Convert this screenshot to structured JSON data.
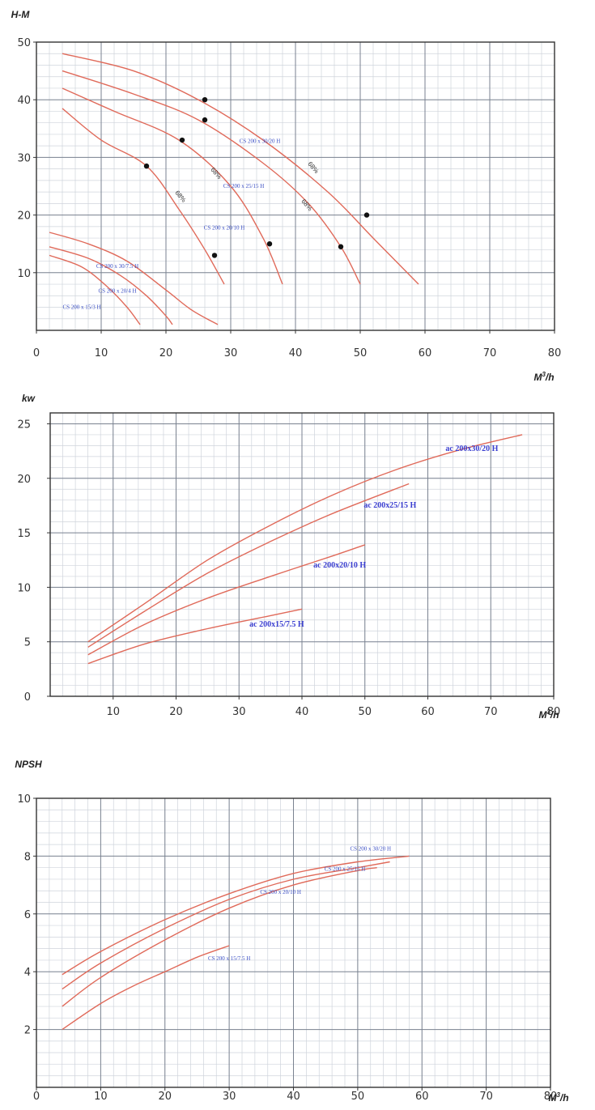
{
  "colors": {
    "grid_minor": "#cfd4dc",
    "grid_major": "#7a8290",
    "frame": "#333333",
    "curve": "#e06a5a",
    "label": "#3b4fc4",
    "point": "#111111"
  },
  "chart_data": [
    {
      "type": "line",
      "ylabel": "H-M",
      "xlabel_main": "M",
      "xlabel_sup": "3",
      "xlabel_tail": "/h",
      "xlim": [
        0,
        80
      ],
      "ylim": [
        0,
        50
      ],
      "xticks": [
        "0",
        "10",
        "20",
        "30",
        "40",
        "50",
        "60",
        "70",
        "80"
      ],
      "yticks": [
        {
          "v": 10,
          "label": "10"
        },
        {
          "v": 20,
          "label": "20"
        },
        {
          "v": 30,
          "label": "30"
        },
        {
          "v": 40,
          "label": "40"
        },
        {
          "v": 50,
          "label": "50"
        }
      ],
      "minor_x": 2,
      "minor_y": 2,
      "major_x": 10,
      "major_y": 10,
      "series": [
        {
          "name": "CS 200 x 30/20 H",
          "points": [
            [
              4,
              48
            ],
            [
              15,
              45
            ],
            [
              25,
              40
            ],
            [
              35,
              33
            ],
            [
              45,
              24
            ],
            [
              52,
              16
            ],
            [
              59,
              8
            ]
          ]
        },
        {
          "name": "CS 200 x 25/15 H",
          "points": [
            [
              4,
              45
            ],
            [
              15,
              41
            ],
            [
              25,
              36.5
            ],
            [
              35,
              29
            ],
            [
              42,
              22
            ],
            [
              47,
              14.5
            ],
            [
              50,
              8
            ]
          ]
        },
        {
          "name": "CS 200 x 20/10 H",
          "points": [
            [
              4,
              42
            ],
            [
              12,
              38
            ],
            [
              22,
              33
            ],
            [
              30,
              25
            ],
            [
              35,
              16
            ],
            [
              38,
              8
            ]
          ]
        },
        {
          "name": "CS 200 x 30/7.5 H",
          "points": [
            [
              4,
              38.5
            ],
            [
              10,
              33
            ],
            [
              17,
              28.5
            ],
            [
              22,
              21
            ],
            [
              26,
              14
            ],
            [
              29,
              8
            ]
          ]
        },
        {
          "name": "CS 200 x 20/4 H",
          "points": [
            [
              2,
              17
            ],
            [
              8,
              15
            ],
            [
              14,
              12
            ],
            [
              20,
              7
            ],
            [
              24,
              3.5
            ],
            [
              28,
              1
            ]
          ]
        },
        {
          "name": "",
          "points": [
            [
              2,
              14.5
            ],
            [
              8,
              12.5
            ],
            [
              13,
              9.5
            ],
            [
              17,
              6
            ],
            [
              20,
              2.5
            ],
            [
              21,
              1
            ]
          ]
        },
        {
          "name": "CS 200 x 15/3 H",
          "points": [
            [
              2,
              13
            ],
            [
              7,
              11
            ],
            [
              11,
              7.5
            ],
            [
              14,
              4
            ],
            [
              16,
              1
            ]
          ]
        }
      ],
      "operating_points": [
        [
          26,
          40
        ],
        [
          26,
          36.5
        ],
        [
          22.5,
          33
        ],
        [
          17,
          28.5
        ],
        [
          51,
          20
        ],
        [
          47,
          14.5
        ],
        [
          36,
          15
        ],
        [
          27.5,
          13
        ]
      ],
      "curve_labels": [
        {
          "text": "CS 200 x 30/20 H",
          "x": 34.5,
          "y": 32.5,
          "size": "small"
        },
        {
          "text": "CS 200 x 25/15 H",
          "x": 32,
          "y": 24.7,
          "size": "small"
        },
        {
          "text": "CS 200 x 20/10 H",
          "x": 29,
          "y": 17.5,
          "size": "small"
        },
        {
          "text": "CS 200 x 30/7.5 H",
          "x": 12.5,
          "y": 10.8,
          "size": "small"
        },
        {
          "text": "CS 200 x 20/4 H",
          "x": 12.5,
          "y": 6.5,
          "size": "small"
        },
        {
          "text": "CS 200 x 15/3 H",
          "x": 7,
          "y": 3.7,
          "size": "small"
        }
      ],
      "efficiency_labels": [
        {
          "text": "68%",
          "x": 42.5,
          "y": 28,
          "angle": 50
        },
        {
          "text": "68%",
          "x": 27.5,
          "y": 27,
          "angle": 50
        },
        {
          "text": "68%",
          "x": 41.5,
          "y": 21.5,
          "angle": 50
        },
        {
          "text": "68%",
          "x": 22,
          "y": 23,
          "angle": 50
        }
      ]
    },
    {
      "type": "line",
      "ylabel": "kw",
      "xlabel_main": "M",
      "xlabel_sup": "3",
      "xlabel_tail": "/h",
      "xlim": [
        0,
        80
      ],
      "ylim": [
        0,
        26
      ],
      "xticks": [
        "10",
        "20",
        "30",
        "40",
        "50",
        "60",
        "70",
        "80"
      ],
      "xtick_start": 10,
      "yticks": [
        {
          "v": 0,
          "label": "0"
        },
        {
          "v": 5,
          "label": "5"
        },
        {
          "v": 10,
          "label": "10"
        },
        {
          "v": 15,
          "label": "15"
        },
        {
          "v": 20,
          "label": "20"
        },
        {
          "v": 25,
          "label": "25"
        }
      ],
      "minor_x": 2,
      "minor_y": 1,
      "major_x": 10,
      "major_y": 5,
      "series": [
        {
          "name": "ac 200x30/20 H",
          "points": [
            [
              6,
              5
            ],
            [
              15,
              8.5
            ],
            [
              25,
              12.5
            ],
            [
              35,
              15.7
            ],
            [
              45,
              18.5
            ],
            [
              55,
              20.8
            ],
            [
              65,
              22.6
            ],
            [
              75,
              24
            ]
          ]
        },
        {
          "name": "ac 200x25/15 H",
          "points": [
            [
              6,
              4.5
            ],
            [
              15,
              7.8
            ],
            [
              25,
              11.3
            ],
            [
              35,
              14.2
            ],
            [
              45,
              16.8
            ],
            [
              57,
              19.5
            ]
          ]
        },
        {
          "name": "ac 200x20/10 H",
          "points": [
            [
              6,
              3.8
            ],
            [
              15,
              6.6
            ],
            [
              25,
              9
            ],
            [
              35,
              11
            ],
            [
              45,
              12.9
            ],
            [
              50,
              13.9
            ]
          ]
        },
        {
          "name": "ac 200x15/7.5 H",
          "points": [
            [
              6,
              3
            ],
            [
              15,
              4.8
            ],
            [
              25,
              6.2
            ],
            [
              35,
              7.4
            ],
            [
              40,
              8
            ]
          ]
        }
      ],
      "curve_labels": [
        {
          "text": "ac 200x30/20 H",
          "x": 67,
          "y": 22.5,
          "size": "big"
        },
        {
          "text": "ac 200x25/15 H",
          "x": 54,
          "y": 17.3,
          "size": "big"
        },
        {
          "text": "ac 200x20/10 H",
          "x": 46,
          "y": 11.8,
          "size": "big"
        },
        {
          "text": "ac 200x15/7.5 H",
          "x": 36,
          "y": 6.4,
          "size": "big"
        }
      ]
    },
    {
      "type": "line",
      "ylabel": "NPSH",
      "xlabel_main": "M",
      "xlabel_sup": "3",
      "xlabel_tail": "/h",
      "xlim": [
        0,
        80
      ],
      "ylim": [
        0,
        10
      ],
      "xticks": [
        "0",
        "10",
        "20",
        "30",
        "40",
        "50",
        "60",
        "70",
        "80"
      ],
      "yticks": [
        {
          "v": 2,
          "label": "2"
        },
        {
          "v": 4,
          "label": "4"
        },
        {
          "v": 6,
          "label": "6"
        },
        {
          "v": 8,
          "label": "8"
        },
        {
          "v": 10,
          "label": "10"
        }
      ],
      "minor_x": 2,
      "minor_y": 0.4,
      "major_x": 10,
      "major_y": 2,
      "series": [
        {
          "name": "CS 200 x 30/20 H",
          "points": [
            [
              4,
              3.9
            ],
            [
              10,
              4.7
            ],
            [
              20,
              5.8
            ],
            [
              30,
              6.7
            ],
            [
              40,
              7.4
            ],
            [
              50,
              7.8
            ],
            [
              58,
              8
            ]
          ]
        },
        {
          "name": "CS 200 x 25/15 H",
          "points": [
            [
              4,
              3.4
            ],
            [
              10,
              4.3
            ],
            [
              20,
              5.5
            ],
            [
              30,
              6.5
            ],
            [
              40,
              7.2
            ],
            [
              50,
              7.6
            ],
            [
              55,
              7.8
            ]
          ]
        },
        {
          "name": "CS 200 x 20/10 H",
          "points": [
            [
              4,
              2.8
            ],
            [
              10,
              3.8
            ],
            [
              20,
              5.1
            ],
            [
              30,
              6.2
            ],
            [
              40,
              7
            ],
            [
              50,
              7.5
            ],
            [
              53,
              7.6
            ]
          ]
        },
        {
          "name": "CS 200 x 15/7.5 H",
          "points": [
            [
              4,
              2
            ],
            [
              10,
              2.9
            ],
            [
              15,
              3.5
            ],
            [
              20,
              4
            ],
            [
              25,
              4.5
            ],
            [
              30,
              4.9
            ]
          ]
        }
      ],
      "curve_labels": [
        {
          "text": "CS 200 x 30/20 H",
          "x": 52,
          "y": 8.2,
          "size": "small"
        },
        {
          "text": "CS 200 x 25/15 H",
          "x": 48,
          "y": 7.5,
          "size": "small"
        },
        {
          "text": "CS 200 x 20/10 H",
          "x": 38,
          "y": 6.7,
          "size": "small"
        },
        {
          "text": "CS 200 x 15/7.5 H",
          "x": 30,
          "y": 4.4,
          "size": "small"
        }
      ]
    }
  ]
}
